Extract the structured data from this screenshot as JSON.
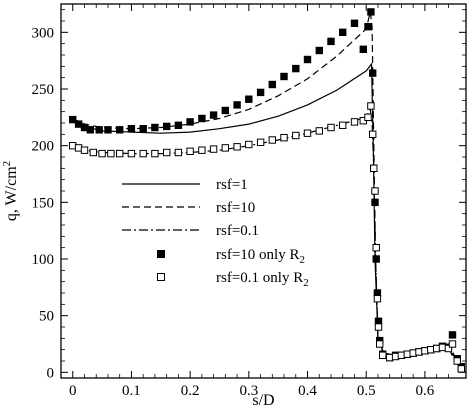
{
  "chart_data": {
    "type": "line",
    "xlabel": "s/D",
    "ylabel": "q, W/cm",
    "ylabel_sup": "2",
    "xlim": [
      -0.02,
      0.67
    ],
    "ylim": [
      -5,
      325
    ],
    "x_ticks": [
      0,
      0.1,
      0.2,
      0.3,
      0.4,
      0.5,
      0.6
    ],
    "x_tick_labels": [
      "0",
      "0.1",
      "0.2",
      "0.3",
      "0.4",
      "0.5",
      "0.6"
    ],
    "y_ticks": [
      0,
      50,
      100,
      150,
      200,
      250,
      300
    ],
    "y_tick_labels": [
      "0",
      "50",
      "100",
      "150",
      "200",
      "250",
      "300"
    ],
    "grid": false,
    "legend_placement": "center",
    "series": [
      {
        "name": "rsf=1",
        "style": "solid",
        "x": [
          0,
          0.02,
          0.05,
          0.1,
          0.15,
          0.2,
          0.25,
          0.3,
          0.35,
          0.4,
          0.45,
          0.5,
          0.509,
          0.512,
          0.515,
          0.52,
          0.53,
          0.55,
          0.58,
          0.6,
          0.62,
          0.64,
          0.65,
          0.66
        ],
        "y": [
          222,
          217,
          213,
          212,
          211,
          212,
          215,
          219,
          226,
          236,
          249,
          266,
          272,
          200,
          100,
          30,
          17,
          15,
          17,
          19,
          21,
          20,
          14,
          5
        ]
      },
      {
        "name": "rsf=10",
        "style": "dashed",
        "x": [
          0,
          0.02,
          0.05,
          0.1,
          0.15,
          0.2,
          0.25,
          0.3,
          0.35,
          0.4,
          0.45,
          0.5,
          0.507,
          0.51,
          0.513,
          0.516,
          0.52,
          0.53,
          0.55,
          0.58,
          0.6,
          0.62,
          0.64,
          0.65,
          0.66
        ],
        "y": [
          224,
          219,
          216,
          215,
          216,
          219,
          224,
          232,
          244,
          259,
          279,
          303,
          318,
          305,
          200,
          100,
          30,
          17,
          15,
          17,
          20,
          23,
          25,
          15,
          5
        ]
      },
      {
        "name": "rsf=0.1",
        "style": "dash-dot",
        "x": [
          0,
          0.02,
          0.05,
          0.1,
          0.15,
          0.2,
          0.25,
          0.3,
          0.35,
          0.4,
          0.45,
          0.5,
          0.507,
          0.51,
          0.513,
          0.516,
          0.52,
          0.53,
          0.55,
          0.58,
          0.6,
          0.62,
          0.64,
          0.65,
          0.66
        ],
        "y": [
          200,
          196,
          194,
          193,
          193,
          194,
          196,
          200,
          205,
          211,
          218,
          225,
          232,
          220,
          180,
          100,
          30,
          16,
          14,
          16,
          19,
          21,
          20,
          12,
          4
        ]
      },
      {
        "name": "rsf=10 only R",
        "name_sub": "2",
        "style": "filled-square",
        "x": [
          0,
          0.01,
          0.02,
          0.03,
          0.045,
          0.06,
          0.08,
          0.1,
          0.12,
          0.14,
          0.16,
          0.18,
          0.2,
          0.22,
          0.24,
          0.26,
          0.28,
          0.3,
          0.32,
          0.34,
          0.36,
          0.38,
          0.4,
          0.42,
          0.44,
          0.46,
          0.48,
          0.495,
          0.503,
          0.508,
          0.511,
          0.513,
          0.515,
          0.517,
          0.519,
          0.521,
          0.523,
          0.528,
          0.54,
          0.55,
          0.56,
          0.57,
          0.58,
          0.59,
          0.6,
          0.61,
          0.62,
          0.63,
          0.64,
          0.647,
          0.655,
          0.662
        ],
        "y": [
          223,
          219,
          216,
          214,
          214,
          214,
          214,
          215,
          215,
          216,
          217,
          218,
          221,
          224,
          227,
          231,
          236,
          241,
          247,
          254,
          261,
          268,
          276,
          284,
          292,
          300,
          308,
          285,
          305,
          318,
          264,
          180,
          150,
          100,
          70,
          45,
          28,
          16,
          13,
          15,
          15,
          16,
          17,
          18,
          19,
          20,
          21,
          23,
          22,
          33,
          12,
          5
        ]
      },
      {
        "name": "rsf=0.1 only R",
        "name_sub": "2",
        "style": "open-square",
        "x": [
          0,
          0.01,
          0.02,
          0.035,
          0.05,
          0.065,
          0.08,
          0.1,
          0.12,
          0.14,
          0.16,
          0.18,
          0.2,
          0.22,
          0.24,
          0.26,
          0.28,
          0.3,
          0.32,
          0.34,
          0.36,
          0.38,
          0.4,
          0.42,
          0.44,
          0.46,
          0.48,
          0.495,
          0.503,
          0.508,
          0.511,
          0.513,
          0.515,
          0.517,
          0.519,
          0.521,
          0.523,
          0.528,
          0.54,
          0.55,
          0.56,
          0.57,
          0.58,
          0.59,
          0.6,
          0.61,
          0.62,
          0.63,
          0.64,
          0.647,
          0.655,
          0.662
        ],
        "y": [
          200,
          198,
          196,
          194,
          193,
          193,
          193,
          193,
          193,
          193,
          194,
          194,
          195,
          196,
          197,
          198,
          199,
          201,
          203,
          205,
          207,
          209,
          211,
          213,
          216,
          218,
          221,
          222,
          225,
          235,
          210,
          180,
          160,
          110,
          65,
          40,
          25,
          15,
          13,
          14,
          15,
          16,
          17,
          18,
          19,
          20,
          21,
          22,
          21,
          25,
          10,
          3
        ]
      }
    ]
  }
}
